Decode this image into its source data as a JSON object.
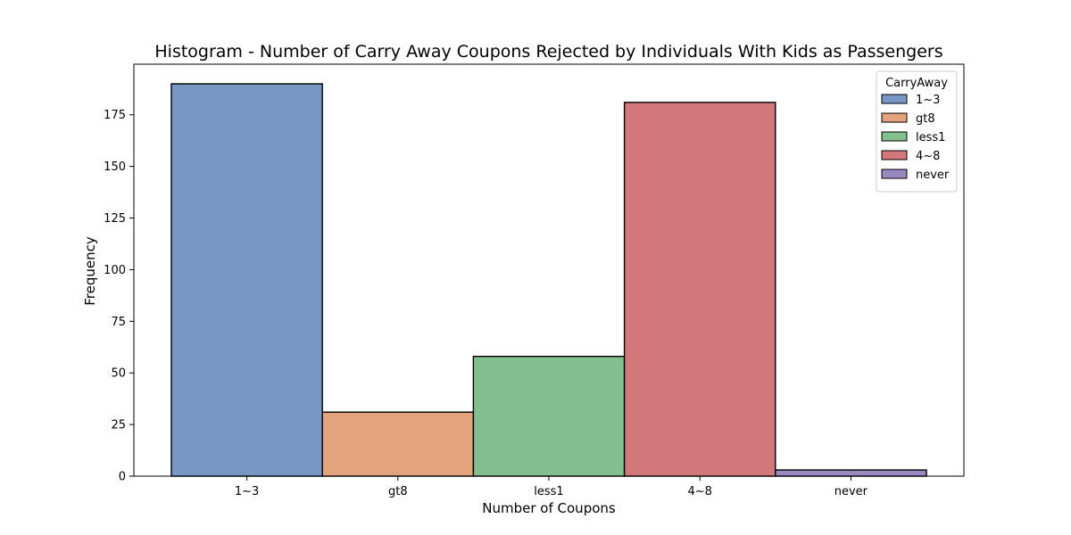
{
  "chart_data": {
    "type": "bar",
    "title": "Histogram - Number of Carry Away Coupons Rejected by Individuals With Kids as Passengers",
    "xlabel": "Number of Coupons",
    "ylabel": "Frequency",
    "categories": [
      "1~3",
      "gt8",
      "less1",
      "4~8",
      "never"
    ],
    "series": [
      {
        "name": "1~3",
        "category": "1~3",
        "value": 190,
        "color": "#7897c5"
      },
      {
        "name": "gt8",
        "category": "gt8",
        "value": 31,
        "color": "#e3a47d"
      },
      {
        "name": "less1",
        "category": "less1",
        "value": 58,
        "color": "#81bf8f"
      },
      {
        "name": "4~8",
        "category": "4~8",
        "value": 181,
        "color": "#d2787b"
      },
      {
        "name": "never",
        "category": "never",
        "value": 3,
        "color": "#9a88c2"
      }
    ],
    "ylim": [
      0,
      199.5
    ],
    "yticks": [
      0,
      25,
      50,
      75,
      100,
      125,
      150,
      175
    ],
    "legend": {
      "title": "CarryAway",
      "position": "top-right"
    },
    "grid": false
  }
}
